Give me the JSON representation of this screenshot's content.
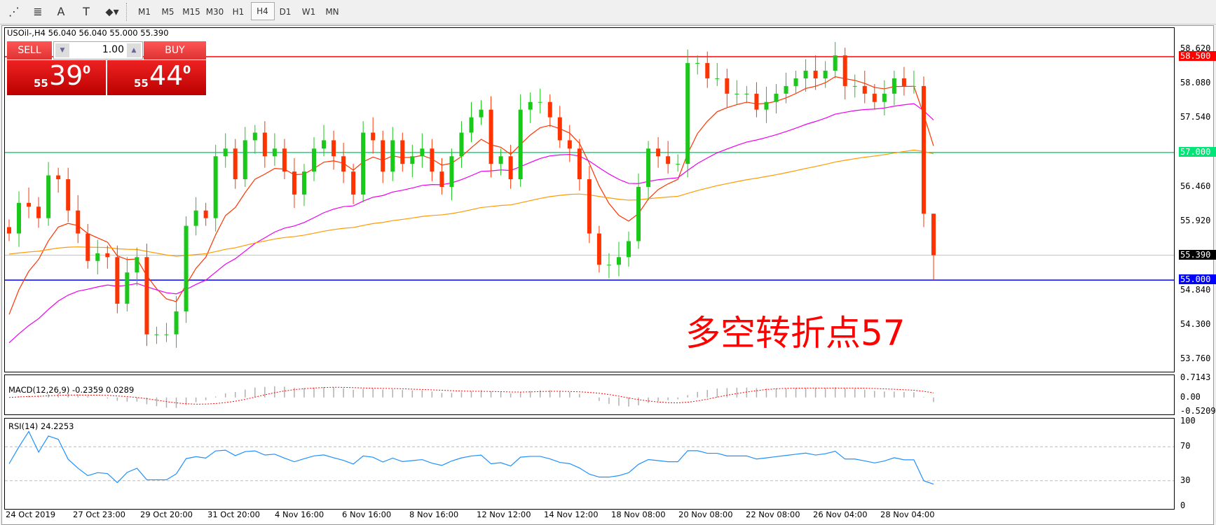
{
  "toolbar": {
    "icons": [
      {
        "name": "elliott-wave-icon",
        "glyph": "⋰"
      },
      {
        "name": "fibonacci-icon",
        "glyph": "≣"
      },
      {
        "name": "text-icon",
        "glyph": "A"
      },
      {
        "name": "text-label-icon",
        "glyph": "T"
      },
      {
        "name": "arrows-icon",
        "glyph": "⬥▾"
      }
    ],
    "timeframes": [
      "M1",
      "M5",
      "M15",
      "M30",
      "H1",
      "H4",
      "D1",
      "W1",
      "MN"
    ],
    "active_timeframe": "H4"
  },
  "chart": {
    "header": "USOil-,H4  56.040 56.040 55.000 55.390",
    "trade": {
      "sell_label": "SELL",
      "buy_label": "BUY",
      "lot": "1.00",
      "sell_small": "55",
      "sell_big": "39",
      "sell_sup": "0",
      "buy_small": "55",
      "buy_big": "44",
      "buy_sup": "0"
    },
    "annotation": "多空转折点57",
    "macd_label": "MACD(12,26,9) -0.2359 0.0289",
    "rsi_label": "RSI(14) 24.2253"
  },
  "chart_data": {
    "type": "candlestick",
    "symbol": "USOil-",
    "timeframe": "H4",
    "last_bar": {
      "open": 56.04,
      "high": 56.04,
      "low": 55.0,
      "close": 55.39
    },
    "closes": [
      55.73,
      56.21,
      56.15,
      55.97,
      56.64,
      56.58,
      56.09,
      55.73,
      55.3,
      55.42,
      55.36,
      54.63,
      55.12,
      55.36,
      54.15,
      54.15,
      54.15,
      54.51,
      55.85,
      56.09,
      55.97,
      56.94,
      57.06,
      56.58,
      57.19,
      57.31,
      56.94,
      57.06,
      56.7,
      56.34,
      56.7,
      57.06,
      57.19,
      56.94,
      56.7,
      56.34,
      57.31,
      57.19,
      56.7,
      57.19,
      56.82,
      56.94,
      57.06,
      56.7,
      56.46,
      56.94,
      57.31,
      57.55,
      57.67,
      56.82,
      56.94,
      56.58,
      57.67,
      57.79,
      57.79,
      57.55,
      57.19,
      57.06,
      56.58,
      55.73,
      55.24,
      55.24,
      55.36,
      55.61,
      56.46,
      57.06,
      56.94,
      56.82,
      56.82,
      58.4,
      58.4,
      58.16,
      58.16,
      57.92,
      57.92,
      57.92,
      57.67,
      57.79,
      57.92,
      58.04,
      58.16,
      58.28,
      58.16,
      58.28,
      58.52,
      58.04,
      58.04,
      57.92,
      57.79,
      57.92,
      58.16,
      58.04,
      58.04,
      56.04,
      55.39
    ],
    "y_ticks": [
      "58.620",
      "58.080",
      "57.540",
      "56.460",
      "55.920",
      "54.840",
      "54.300",
      "53.760"
    ],
    "ylim": [
      53.6,
      58.9
    ],
    "x_ticks": [
      "24 Oct 2019",
      "27 Oct 23:00",
      "29 Oct 20:00",
      "31 Oct 20:00",
      "4 Nov 16:00",
      "6 Nov 16:00",
      "8 Nov 16:00",
      "12 Nov 12:00",
      "14 Nov 12:00",
      "18 Nov 08:00",
      "20 Nov 08:00",
      "22 Nov 08:00",
      "26 Nov 04:00",
      "28 Nov 04:00"
    ],
    "levels": [
      {
        "value": 58.5,
        "label": "58.500",
        "color": "#ff0000"
      },
      {
        "value": 57.0,
        "label": "57.000",
        "color": "#00e676"
      },
      {
        "value": 55.0,
        "label": "55.000",
        "color": "#0000ff"
      }
    ],
    "bid_line": {
      "value": 55.39,
      "label": "55.390",
      "color": "#000000"
    },
    "moving_averages": [
      {
        "color": "#ff3300"
      },
      {
        "color": "#ee00ee"
      },
      {
        "color": "#ff9900"
      }
    ],
    "macd": {
      "ticks": [
        "0.7143",
        "0.00",
        "-0.5209"
      ],
      "range": [
        -0.5209,
        0.7143
      ]
    },
    "rsi": {
      "ticks": [
        "100",
        "70",
        "30",
        "0"
      ],
      "levels": [
        70,
        30
      ]
    },
    "colors": {
      "bull": "#19c819",
      "bear": "#ff3300",
      "rsi": "#1e90ff",
      "signal": "#ff0000",
      "hist": "#b0b0b0"
    }
  }
}
